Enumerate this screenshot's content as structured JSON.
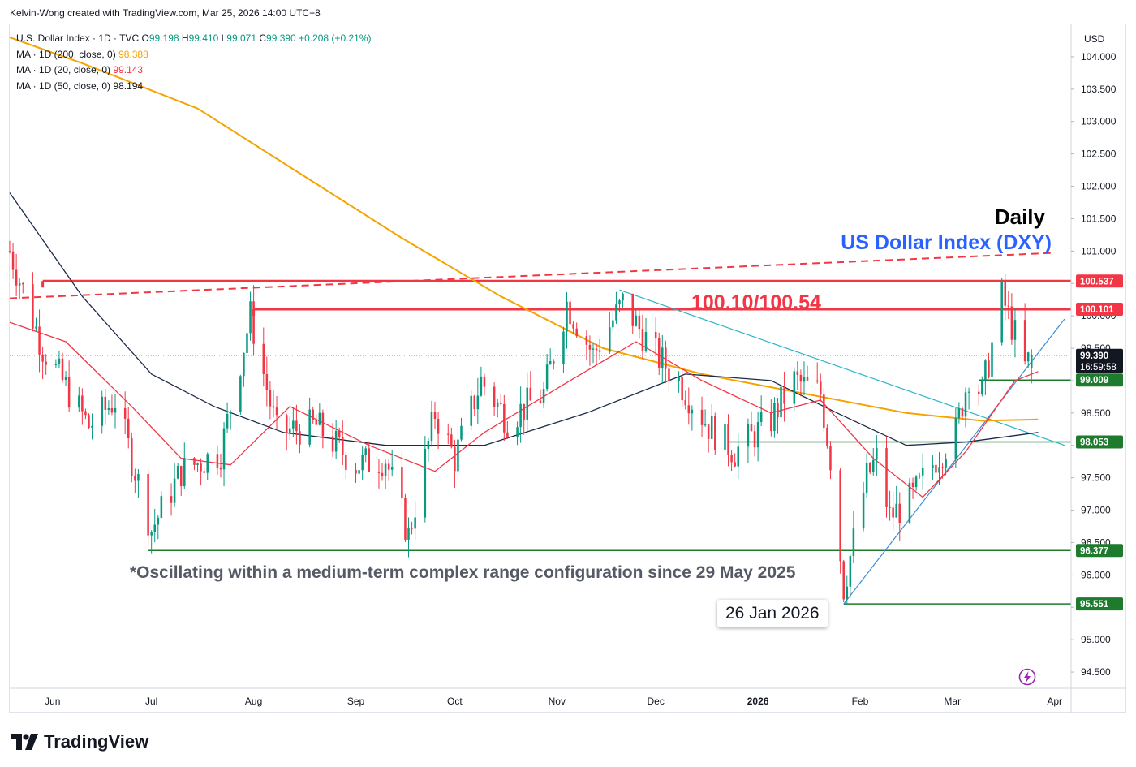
{
  "header": {
    "credit": "Kelvin-Wong created with TradingView.com, Mar 25, 2026 14:00 UTC+8"
  },
  "legend": {
    "symbol": "U.S. Dollar Index · 1D · TVC",
    "o_label": "O",
    "o_value": "99.198",
    "h_label": "H",
    "h_value": "99.410",
    "l_label": "L",
    "l_value": "99.071",
    "c_label": "C",
    "c_value": "99.390",
    "change": "+0.208 (+0.21%)",
    "ma200_label": "MA · 1D (200, close, 0)",
    "ma200_value": "98.388",
    "ma20_label": "MA · 1D (20, close, 0)",
    "ma20_value": "99.143",
    "ma50_label": "MA · 1D (50, close, 0)",
    "ma50_value": "98.194"
  },
  "annotations": {
    "timeframe": "Daily",
    "instrument": "US Dollar Index (DXY)",
    "resistance_text": "100.10/100.54",
    "range_note": "*Oscillating within a medium-term complex range configuration since 29 May 2025",
    "low_date": "26 Jan 2026"
  },
  "branding": {
    "name": "TradingView"
  },
  "colors": {
    "up": "#089981",
    "down": "#f23645",
    "ma200": "#f5a300",
    "ma20": "#f23645",
    "ma50": "#1b2a4a",
    "resistance": "#f23645",
    "support": "#1e7b2e",
    "trendline": "#26b5c9",
    "uptrend": "#3b8fd8"
  },
  "chart_data": {
    "type": "candlestick",
    "currency": "USD",
    "timeframe": "1D",
    "ylim": [
      94.25,
      104.5
    ],
    "y_ticks": [
      94.5,
      95.0,
      95.5,
      96.0,
      96.5,
      97.0,
      97.5,
      98.0,
      98.5,
      99.0,
      99.5,
      100.0,
      100.5,
      101.0,
      101.5,
      102.0,
      102.5,
      103.0,
      103.5,
      104.0
    ],
    "y_tick_labels": [
      "94.500",
      "95.000",
      "95.500",
      "96.000",
      "96.500",
      "97.000",
      "97.500",
      "98.000",
      "98.500",
      "99.000",
      "99.500",
      "100.000",
      "100.500",
      "101.000",
      "101.500",
      "102.000",
      "102.500",
      "103.000",
      "103.500",
      "104.000"
    ],
    "x_range": [
      "2025-05-19",
      "2026-04-06"
    ],
    "x_ticks": [
      {
        "date": "2025-06-01",
        "label": "Jun"
      },
      {
        "date": "2025-07-01",
        "label": "Jul"
      },
      {
        "date": "2025-08-01",
        "label": "Aug"
      },
      {
        "date": "2025-09-01",
        "label": "Sep"
      },
      {
        "date": "2025-10-01",
        "label": "Oct"
      },
      {
        "date": "2025-11-01",
        "label": "Nov"
      },
      {
        "date": "2025-12-01",
        "label": "Dec"
      },
      {
        "date": "2026-01-01",
        "label": "2026"
      },
      {
        "date": "2026-02-01",
        "label": "Feb"
      },
      {
        "date": "2026-03-01",
        "label": "Mar"
      },
      {
        "date": "2026-04-01",
        "label": "Apr"
      }
    ],
    "price_path": [
      [
        "2025-05-19",
        101.0
      ],
      [
        "2025-05-29",
        99.5
      ],
      [
        "2025-06-05",
        98.9
      ],
      [
        "2025-06-12",
        98.3
      ],
      [
        "2025-06-20",
        98.7
      ],
      [
        "2025-07-01",
        96.7
      ],
      [
        "2025-07-10",
        97.6
      ],
      [
        "2025-07-22",
        97.9
      ],
      [
        "2025-07-31",
        100.0
      ],
      [
        "2025-08-08",
        98.2
      ],
      [
        "2025-08-20",
        98.3
      ],
      [
        "2025-09-01",
        97.7
      ],
      [
        "2025-09-10",
        97.8
      ],
      [
        "2025-09-17",
        96.6
      ],
      [
        "2025-09-25",
        98.5
      ],
      [
        "2025-10-01",
        97.8
      ],
      [
        "2025-10-09",
        99.0
      ],
      [
        "2025-10-17",
        98.4
      ],
      [
        "2025-10-28",
        98.8
      ],
      [
        "2025-11-04",
        100.2
      ],
      [
        "2025-11-12",
        99.4
      ],
      [
        "2025-11-21",
        100.2
      ],
      [
        "2025-12-01",
        99.4
      ],
      [
        "2025-12-08",
        99.0
      ],
      [
        "2025-12-17",
        98.3
      ],
      [
        "2025-12-25",
        97.9
      ],
      [
        "2026-01-05",
        98.4
      ],
      [
        "2026-01-12",
        99.0
      ],
      [
        "2026-01-20",
        98.8
      ],
      [
        "2026-01-23",
        97.8
      ],
      [
        "2026-01-27",
        95.8
      ],
      [
        "2026-02-03",
        97.5
      ],
      [
        "2026-02-06",
        97.8
      ],
      [
        "2026-02-10",
        96.9
      ],
      [
        "2026-02-17",
        97.2
      ],
      [
        "2026-02-24",
        97.8
      ],
      [
        "2026-03-02",
        98.2
      ],
      [
        "2026-03-06",
        99.1
      ],
      [
        "2026-03-10",
        98.8
      ],
      [
        "2026-03-16",
        100.3
      ],
      [
        "2026-03-20",
        99.7
      ],
      [
        "2026-03-23",
        99.2
      ],
      [
        "2026-03-25",
        99.39
      ]
    ],
    "ma200_path": [
      [
        "2025-05-19",
        104.3
      ],
      [
        "2025-06-10",
        103.9
      ],
      [
        "2025-07-15",
        103.2
      ],
      [
        "2025-08-15",
        102.2
      ],
      [
        "2025-09-15",
        101.2
      ],
      [
        "2025-10-15",
        100.3
      ],
      [
        "2025-11-15",
        99.5
      ],
      [
        "2025-12-15",
        99.1
      ],
      [
        "2026-01-15",
        98.8
      ],
      [
        "2026-02-15",
        98.5
      ],
      [
        "2026-03-10",
        98.38
      ],
      [
        "2026-03-27",
        98.4
      ]
    ],
    "ma50_path": [
      [
        "2025-05-19",
        101.9
      ],
      [
        "2025-06-10",
        100.3
      ],
      [
        "2025-07-01",
        99.1
      ],
      [
        "2025-07-20",
        98.6
      ],
      [
        "2025-08-10",
        98.2
      ],
      [
        "2025-09-10",
        98.0
      ],
      [
        "2025-10-10",
        98.0
      ],
      [
        "2025-11-10",
        98.5
      ],
      [
        "2025-12-10",
        99.1
      ],
      [
        "2026-01-05",
        99.0
      ],
      [
        "2026-01-25",
        98.5
      ],
      [
        "2026-02-15",
        98.0
      ],
      [
        "2026-03-05",
        98.05
      ],
      [
        "2026-03-27",
        98.2
      ]
    ],
    "ma20_path": [
      [
        "2025-05-19",
        99.9
      ],
      [
        "2025-06-05",
        99.6
      ],
      [
        "2025-06-25",
        98.6
      ],
      [
        "2025-07-10",
        97.8
      ],
      [
        "2025-07-25",
        97.7
      ],
      [
        "2025-08-12",
        98.6
      ],
      [
        "2025-09-05",
        98.0
      ],
      [
        "2025-09-25",
        97.6
      ],
      [
        "2025-10-10",
        98.2
      ],
      [
        "2025-11-05",
        99.0
      ],
      [
        "2025-11-25",
        99.6
      ],
      [
        "2025-12-15",
        99.0
      ],
      [
        "2026-01-05",
        98.5
      ],
      [
        "2026-01-20",
        98.7
      ],
      [
        "2026-02-05",
        97.8
      ],
      [
        "2026-02-20",
        97.2
      ],
      [
        "2026-03-05",
        97.9
      ],
      [
        "2026-03-20",
        99.0
      ],
      [
        "2026-03-27",
        99.14
      ]
    ],
    "horizontal_levels": [
      {
        "price": 100.537,
        "label": "100.537",
        "kind": "resistance",
        "from": "2025-05-29"
      },
      {
        "price": 100.101,
        "label": "100.101",
        "kind": "resistance",
        "from": "2025-08-01"
      },
      {
        "price": 99.39,
        "label": "99.390",
        "sub": "16:59:58",
        "kind": "last"
      },
      {
        "price": 99.009,
        "label": "99.009",
        "kind": "support",
        "from": "2026-03-09"
      },
      {
        "price": 98.053,
        "label": "98.053",
        "kind": "support",
        "from": "2025-12-23"
      },
      {
        "price": 96.377,
        "label": "96.377",
        "kind": "support",
        "from": "2025-06-30"
      },
      {
        "price": 95.551,
        "label": "95.551",
        "kind": "support",
        "from": "2026-01-27"
      }
    ],
    "trendlines": [
      {
        "kind": "dashed-resistance",
        "points": [
          [
            "2025-05-19",
            100.27
          ],
          [
            "2026-03-31",
            100.97
          ]
        ]
      },
      {
        "kind": "downtrend",
        "points": [
          [
            "2025-11-20",
            100.4
          ],
          [
            "2026-04-04",
            98.0
          ]
        ]
      },
      {
        "kind": "uptrend",
        "points": [
          [
            "2026-01-27",
            95.55
          ],
          [
            "2026-04-04",
            99.95
          ]
        ]
      }
    ]
  }
}
